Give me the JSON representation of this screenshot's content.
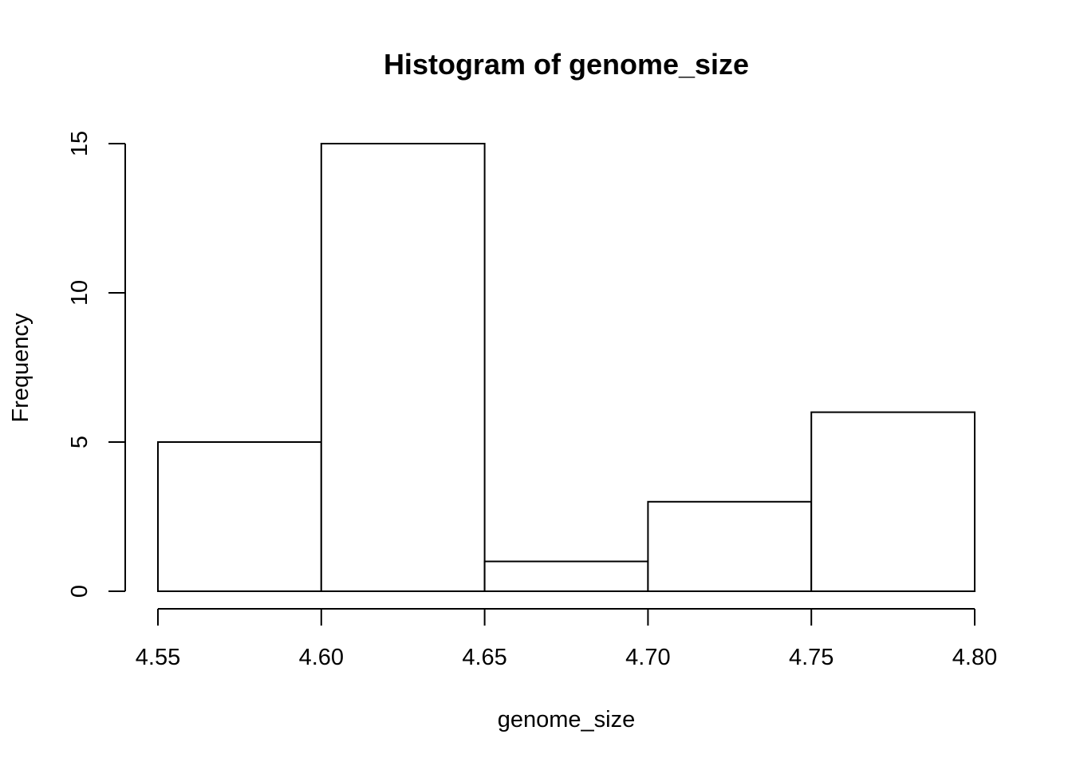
{
  "chart_data": {
    "type": "bar",
    "title": "Histogram of genome_size",
    "xlabel": "genome_size",
    "ylabel": "Frequency",
    "bins": [
      {
        "start": 4.55,
        "end": 4.6,
        "count": 5
      },
      {
        "start": 4.6,
        "end": 4.65,
        "count": 15
      },
      {
        "start": 4.65,
        "end": 4.7,
        "count": 1
      },
      {
        "start": 4.7,
        "end": 4.75,
        "count": 3
      },
      {
        "start": 4.75,
        "end": 4.8,
        "count": 6
      }
    ],
    "xlim": [
      4.55,
      4.8
    ],
    "ylim": [
      0,
      15
    ],
    "x_ticks": [
      "4.55",
      "4.60",
      "4.65",
      "4.70",
      "4.75",
      "4.80"
    ],
    "y_ticks": [
      "0",
      "5",
      "10",
      "15"
    ],
    "grid": false,
    "bar_fill": "#ffffff",
    "bar_stroke": "#000000"
  }
}
